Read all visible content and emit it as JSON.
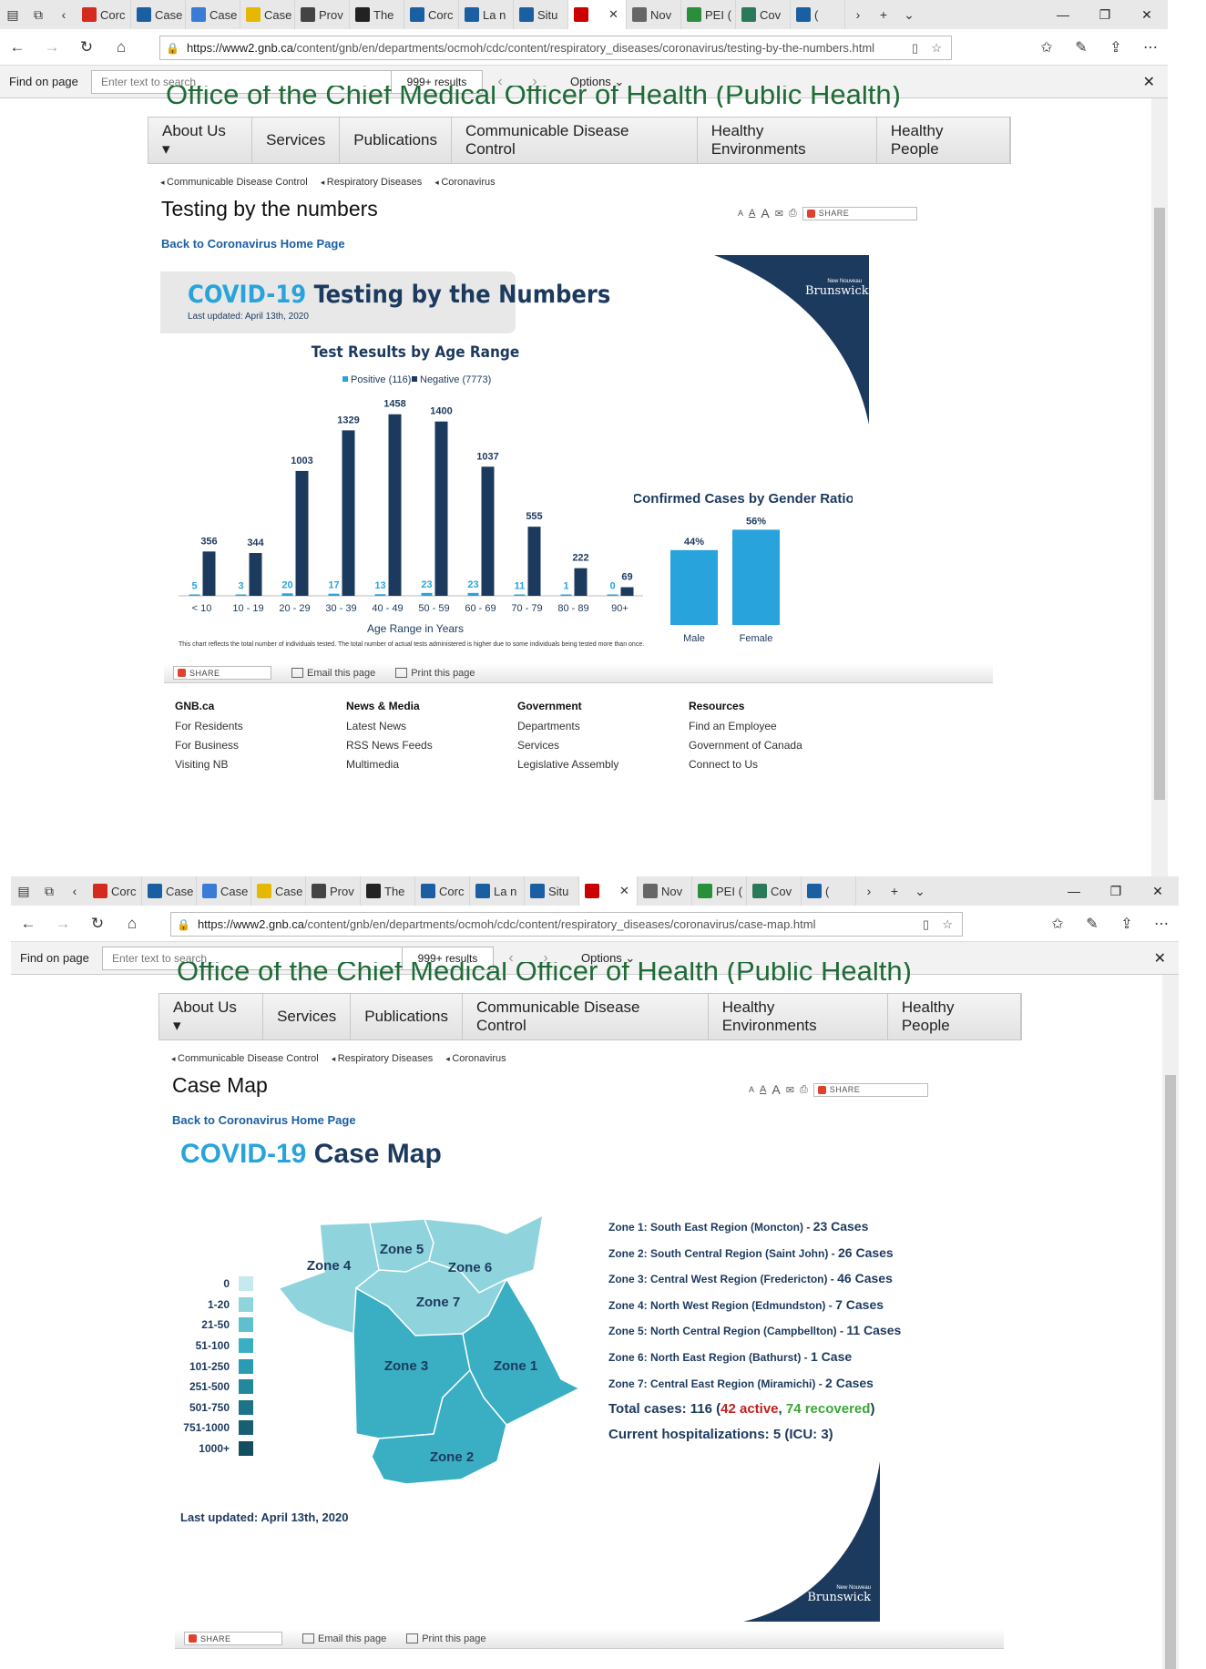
{
  "tabs": {
    "items": [
      "Corc",
      "Case",
      "Case",
      "Case",
      "Prov",
      "The",
      "Corc",
      "La n",
      "Situ",
      "",
      "Nov",
      "PEI (",
      "Cov",
      "("
    ],
    "new_tab": "+"
  },
  "window1": {
    "url_host": "https://www2.gnb.ca",
    "url_path": "/content/gnb/en/departments/ocmoh/cdc/content/respiratory_diseases/coronavirus/testing-by-the-numbers.html",
    "find_label": "Find on page",
    "find_placeholder": "Enter text to search",
    "find_results": "999+ results",
    "find_options": "Options",
    "header_text": "Office of the Chief Medical Officer of Health (Public Health)",
    "menu": [
      "About Us ▾",
      "Services",
      "Publications",
      "Communicable Disease Control",
      "Healthy Environments",
      "Healthy People"
    ],
    "crumbs": [
      "Communicable Disease Control",
      "Respiratory Diseases",
      "Coronavirus"
    ],
    "title": "Testing by the numbers",
    "share": "SHARE",
    "back_link": "Back to Coronavirus Home Page",
    "brand": "Brunswick",
    "brand_small": "New Nouveau",
    "info_title_a": "COVID-19",
    "info_title_b": "Testing by the Numbers",
    "updated": "Last updated: April 13th, 2020",
    "footnote": "This chart reflects the total number of individuals tested. The total number of actual tests administered is higher due to some individuals being tested more than once.",
    "email_label": "Email this page",
    "print_label": "Print this page",
    "footer": [
      {
        "head": "GNB.ca",
        "items": [
          "For Residents",
          "For Business",
          "Visiting NB"
        ]
      },
      {
        "head": "News & Media",
        "items": [
          "Latest News",
          "RSS News Feeds",
          "Multimedia"
        ]
      },
      {
        "head": "Government",
        "items": [
          "Departments",
          "Services",
          "Legislative Assembly"
        ]
      },
      {
        "head": "Resources",
        "items": [
          "Find an Employee",
          "Government of Canada",
          "Connect to Us"
        ]
      }
    ]
  },
  "chart_data": [
    {
      "type": "bar",
      "title": "Test Results by Age Range",
      "xlabel": "Age Range in Years",
      "categories": [
        "< 10",
        "10 - 19",
        "20 - 29",
        "30 - 39",
        "40 - 49",
        "50 - 59",
        "60 - 69",
        "70 - 79",
        "80 - 89",
        "90+"
      ],
      "series": [
        {
          "name": "Positive (116)",
          "color": "#29a3dc",
          "values": [
            5,
            3,
            20,
            17,
            13,
            23,
            23,
            11,
            1,
            0
          ]
        },
        {
          "name": "Negative (7773)",
          "color": "#1c3a5e",
          "values": [
            356,
            344,
            1003,
            1329,
            1458,
            1400,
            1037,
            555,
            222,
            69
          ]
        }
      ],
      "ylim": [
        0,
        1500
      ],
      "legend": "top"
    },
    {
      "type": "bar",
      "title": "Confirmed Cases by Gender Ratio",
      "categories": [
        "Male",
        "Female"
      ],
      "values": [
        44,
        56
      ],
      "value_labels": [
        "44%",
        "56%"
      ],
      "color": "#29a3dc",
      "ylim": [
        0,
        60
      ]
    }
  ],
  "window2": {
    "url_host": "https://www2.gnb.ca",
    "url_path": "/content/gnb/en/departments/ocmoh/cdc/content/respiratory_diseases/coronavirus/case-map.html",
    "title": "Case Map",
    "map_title_a": "COVID-19",
    "map_title_b": "Case Map",
    "legend": [
      "0",
      "1-20",
      "21-50",
      "51-100",
      "101-250",
      "251-500",
      "501-750",
      "751-1000",
      "1000+"
    ],
    "legend_colors": [
      "#c5e9f0",
      "#8fd3dd",
      "#5ec0cf",
      "#3aaec2",
      "#2a9cb2",
      "#23879d",
      "#1d7388",
      "#185f72",
      "#134e5e"
    ],
    "zones_map": [
      "Zone 1",
      "Zone 2",
      "Zone 3",
      "Zone 4",
      "Zone 5",
      "Zone 6",
      "Zone 7"
    ],
    "zone_lines": [
      {
        "label": "Zone 1: South East Region (Moncton) - ",
        "cases": "23 Cases"
      },
      {
        "label": "Zone 2: South Central Region (Saint John) - ",
        "cases": "26 Cases"
      },
      {
        "label": "Zone 3: Central West Region (Fredericton) - ",
        "cases": "46 Cases"
      },
      {
        "label": "Zone 4: North West Region (Edmundston) - ",
        "cases": "7 Cases"
      },
      {
        "label": "Zone 5: North Central Region (Campbellton) - ",
        "cases": "11 Cases"
      },
      {
        "label": "Zone 6: North East Region (Bathurst) - ",
        "cases": "1 Case"
      },
      {
        "label": "Zone 7: Central East Region (Miramichi) - ",
        "cases": "2 Cases"
      }
    ],
    "total_a": "Total cases: 116 (",
    "total_active": "42 active",
    "total_sep": ", ",
    "total_recovered": "74 recovered",
    "total_end": ")",
    "hosp": "Current hospitalizations: 5 (ICU: 3)",
    "updated": "Last updated: April 13th, 2020"
  }
}
